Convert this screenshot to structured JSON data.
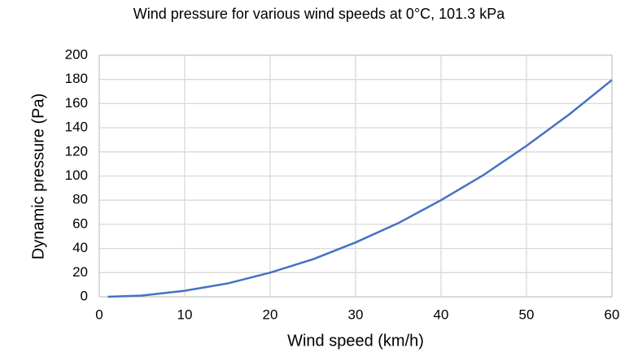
{
  "chart_data": {
    "type": "line",
    "title": "Wind pressure for various wind speeds at 0°C, 101.3 kPa",
    "x_label": "Wind speed (km/h)",
    "y_label": "Dynamic pressure (Pa)",
    "x": [
      1,
      5,
      10,
      15,
      20,
      25,
      30,
      35,
      40,
      45,
      50,
      55,
      60
    ],
    "series": [
      {
        "name": "Dynamic pressure",
        "color": "#4472c4",
        "values": [
          0,
          1,
          5,
          11,
          20,
          31,
          45,
          61,
          80,
          101,
          125,
          151,
          179.5
        ]
      }
    ],
    "xlim": [
      0,
      60
    ],
    "xticks": [
      0,
      10,
      20,
      30,
      40,
      50,
      60
    ],
    "ylim": [
      0,
      200
    ],
    "yticks": [
      0,
      20,
      40,
      60,
      80,
      100,
      120,
      140,
      160,
      180,
      200
    ],
    "grid": true
  }
}
